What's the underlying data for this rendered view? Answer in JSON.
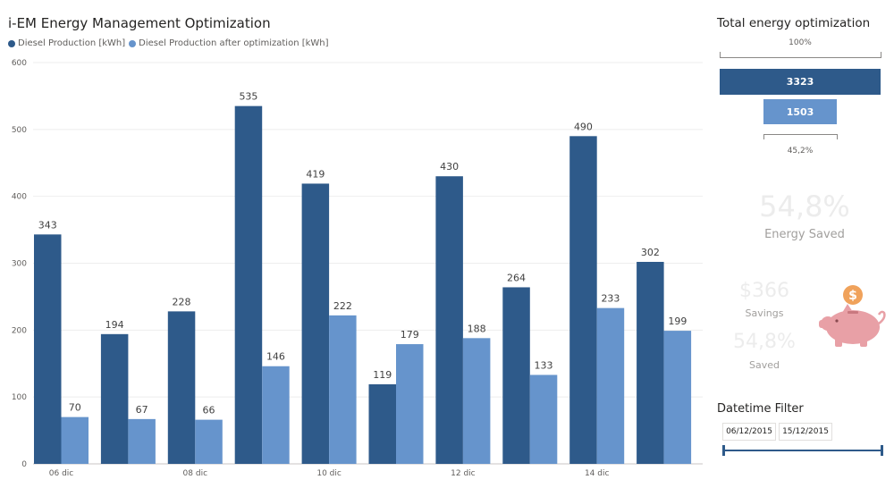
{
  "report": {
    "title": "i-EM Energy Management Optimization"
  },
  "chart_data": {
    "type": "bar",
    "title": "i-EM Energy Management Optimization",
    "categories": [
      "06 dic",
      "",
      "08 dic",
      "",
      "10 dic",
      "",
      "12 dic",
      "",
      "14 dic",
      ""
    ],
    "series": [
      {
        "name": "Diesel Production [kWh]",
        "color": "#2e5a8a",
        "values": [
          343,
          194,
          228,
          535,
          419,
          119,
          430,
          264,
          490,
          302
        ]
      },
      {
        "name": "Diesel Production after optimization [kWh]",
        "color": "#6694cc",
        "values": [
          70,
          67,
          66,
          146,
          222,
          179,
          188,
          133,
          233,
          199
        ]
      }
    ],
    "ylim": [
      0,
      600
    ],
    "yticks": [
      0,
      100,
      200,
      300,
      400,
      500,
      600
    ],
    "grid": true,
    "legend_position": "top-left",
    "xlabel": "",
    "ylabel": ""
  },
  "funnel": {
    "title": "Total energy optimization",
    "top_percent": "100%",
    "main_value": "3323",
    "optimized_value": "1503",
    "bottom_percent": "45,2%",
    "optimized_fraction": 0.452
  },
  "kpis": {
    "energy_saved_value": "54,8%",
    "energy_saved_label": "Energy Saved",
    "savings_value": "$366",
    "savings_label": "Savings",
    "saved_value": "54,8%",
    "saved_label": "Saved"
  },
  "date_filter": {
    "title": "Datetime Filter",
    "start": "06/12/2015",
    "end": "15/12/2015"
  },
  "colors": {
    "series_dark": "#2e5a8a",
    "series_light": "#6694cc",
    "piggy": "#e8a0a6",
    "coin": "#f0a25b"
  }
}
